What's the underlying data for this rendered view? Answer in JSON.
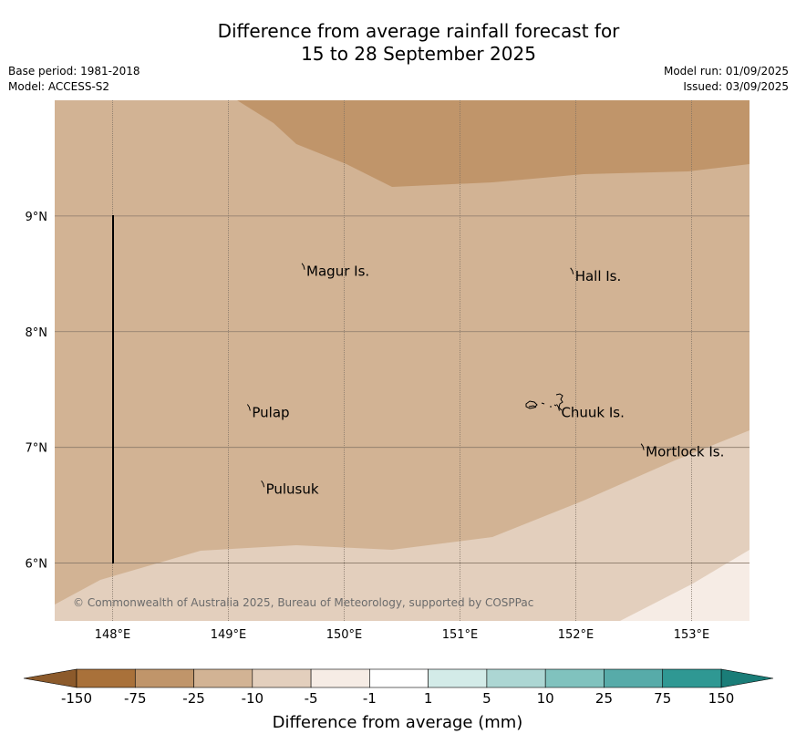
{
  "title": {
    "line1": "Difference from average rainfall forecast for",
    "line2": "15 to 28 September 2025"
  },
  "meta": {
    "base_period": "Base period: 1981-2018",
    "model": "Model: ACCESS-S2",
    "model_run": "Model run: 01/09/2025",
    "issued": "Issued: 03/09/2025"
  },
  "axes": {
    "lon_range": [
      147.5,
      153.5
    ],
    "lat_range": [
      5.5,
      10.0
    ],
    "x_ticks": [
      "148°E",
      "149°E",
      "150°E",
      "151°E",
      "152°E",
      "153°E"
    ],
    "y_ticks": [
      "9°N",
      "8°N",
      "7°N",
      "6°N"
    ]
  },
  "colors": {
    "band_-25_-10": "#d2b394",
    "band_-75_-25": "#c0956a",
    "band_-10_-5": "#e3cfbd",
    "band_-5_-1": "#f6ece5"
  },
  "places": [
    {
      "name": "Magur Is.",
      "lon": 149.65,
      "lat": 8.56
    },
    {
      "name": "Hall Is.",
      "lon": 151.97,
      "lat": 8.52
    },
    {
      "name": "Pulap",
      "lon": 149.18,
      "lat": 7.34
    },
    {
      "name": "Chuuk Is.",
      "lon": 151.85,
      "lat": 7.34
    },
    {
      "name": "Mortlock Is.",
      "lon": 152.58,
      "lat": 7.0
    },
    {
      "name": "Pulusuk",
      "lon": 149.3,
      "lat": 6.68
    }
  ],
  "copyright": "© Commonwealth of Australia 2025, Bureau of Meteorology, supported by COSPPac",
  "colorbar": {
    "labels": [
      "-150",
      "-75",
      "-25",
      "-10",
      "-5",
      "-1",
      "1",
      "5",
      "10",
      "25",
      "75",
      "150"
    ],
    "colors": [
      "#a9713a",
      "#c0956a",
      "#d2b394",
      "#e3cfbd",
      "#f6ece5",
      "#ffffff",
      "#d3ebe8",
      "#acd6d3",
      "#80c2be",
      "#57aba9",
      "#2f9893"
    ],
    "extend_low": "#8c5a2b",
    "extend_high": "#1a7d78",
    "title": "Difference from average (mm)"
  }
}
